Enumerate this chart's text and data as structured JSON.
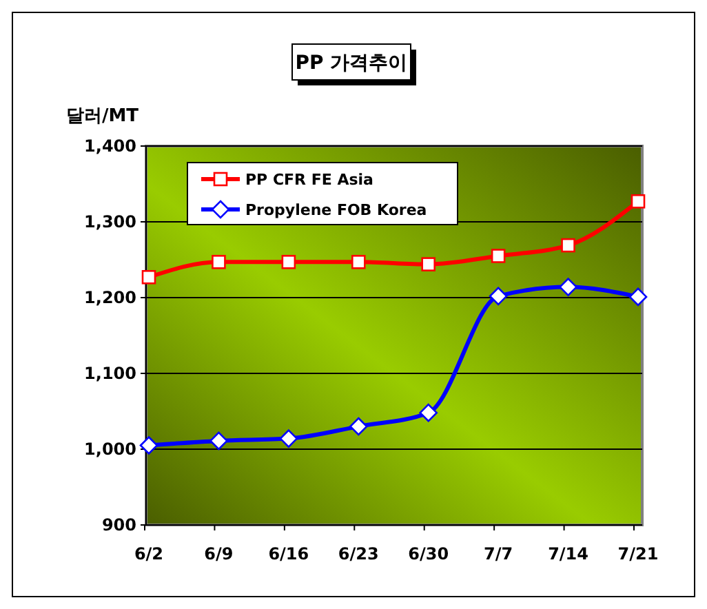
{
  "chart_data": {
    "type": "line",
    "title": "PP 가격추이",
    "ylabel": "달러/MT",
    "categories": [
      "6/2",
      "6/9",
      "6/16",
      "6/23",
      "6/30",
      "7/7",
      "7/14",
      "7/21"
    ],
    "series": [
      {
        "name": "PP CFR FE Asia",
        "color": "#ff0000",
        "marker": "square",
        "values": [
          1227,
          1247,
          1247,
          1247,
          1244,
          1255,
          1269,
          1327
        ]
      },
      {
        "name": "Propylene FOB Korea",
        "color": "#0000ff",
        "marker": "diamond",
        "values": [
          1005,
          1011,
          1014,
          1030,
          1048,
          1202,
          1214,
          1201
        ]
      }
    ],
    "ylim": [
      900,
      1400
    ],
    "yticks": [
      {
        "value": 900,
        "label": "900"
      },
      {
        "value": 1000,
        "label": "1,000"
      },
      {
        "value": 1100,
        "label": "1,100"
      },
      {
        "value": 1200,
        "label": "1,200"
      },
      {
        "value": 1300,
        "label": "1,300"
      },
      {
        "value": 1400,
        "label": "1,400"
      }
    ],
    "grid": "y",
    "legend": "top left"
  }
}
